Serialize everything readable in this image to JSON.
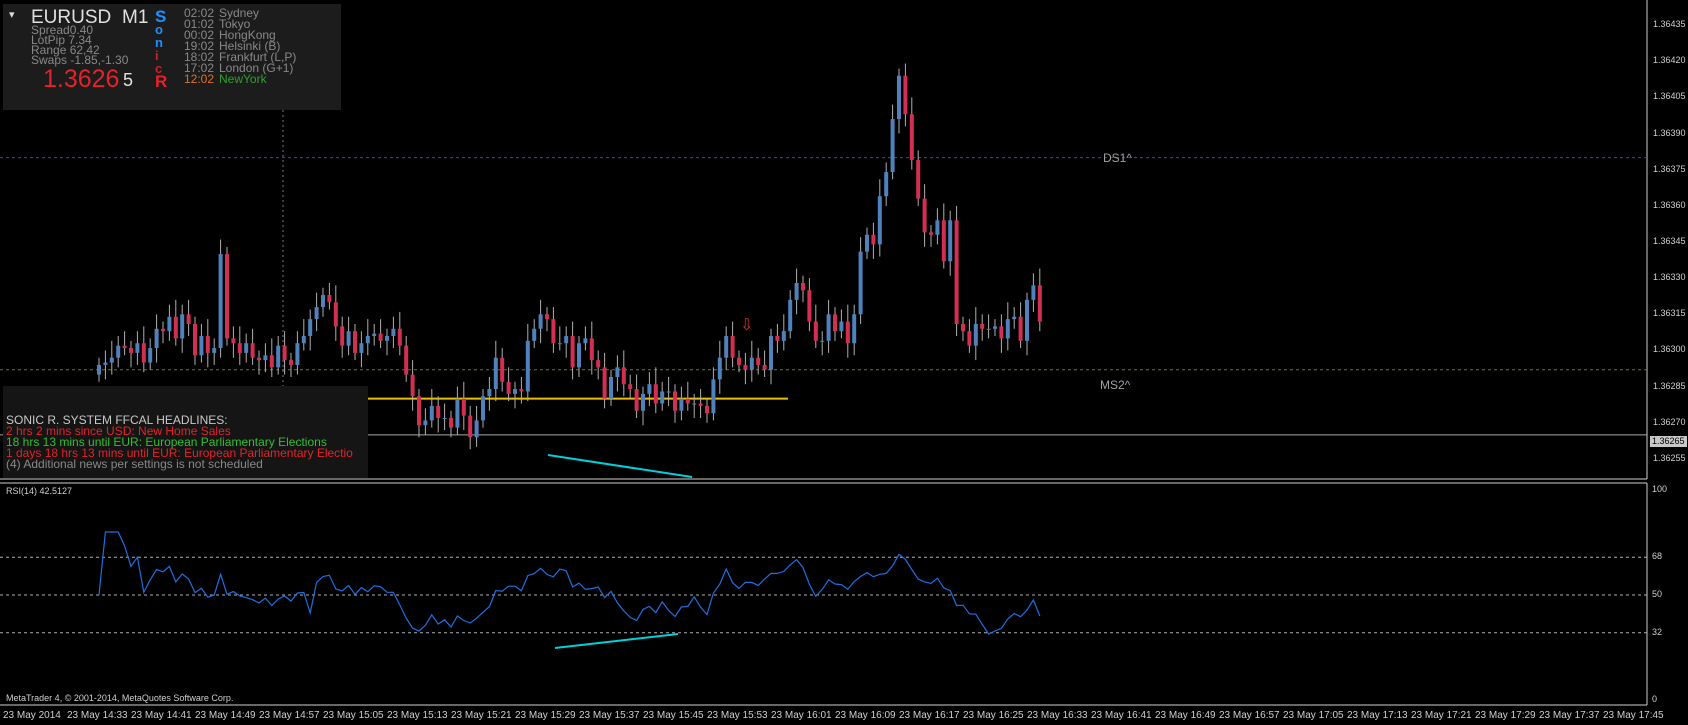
{
  "info": {
    "collapse_glyph": "▾",
    "symbol": "EURUSD",
    "timeframe": "M1",
    "spread": "Spread0.40",
    "lotpip": "LotPip 7.34",
    "range": "Range 62,42",
    "swaps": "Swaps -1.85,-1.30",
    "price": "1.3626",
    "pip_digit": "5",
    "sonic_letters": [
      "S",
      "o",
      "n",
      "i",
      "c",
      "R"
    ],
    "sonic_colors": [
      "#1e90ff",
      "#1e90ff",
      "#1e90ff",
      "#d02020",
      "#d02020",
      "#e8202a"
    ],
    "sessions": [
      {
        "time": "02:02",
        "name": "Sydney",
        "time_color": "#888",
        "name_color": "#888"
      },
      {
        "time": "01:02",
        "name": "Tokyo",
        "time_color": "#888",
        "name_color": "#888"
      },
      {
        "time": "00:02",
        "name": "HongKong",
        "time_color": "#888",
        "name_color": "#888"
      },
      {
        "time": "19:02",
        "name": "Helsinki  (B)",
        "time_color": "#888",
        "name_color": "#888"
      },
      {
        "time": "18:02",
        "name": "Frankfurt  (L,P)",
        "time_color": "#888",
        "name_color": "#888"
      },
      {
        "time": "17:02",
        "name": "London  (G+1)",
        "time_color": "#888",
        "name_color": "#888"
      },
      {
        "time": "12:02",
        "name": "NewYork",
        "time_color": "#e07020",
        "name_color": "#2ea02e"
      }
    ]
  },
  "news": {
    "header": "SONIC R. SYSTEM  FFCAL HEADLINES:",
    "items": [
      {
        "text": "2 hrs 2 mins since USD: New Home Sales",
        "color": "#e8202a"
      },
      {
        "text": "18 hrs 13 mins until EUR: European Parliamentary Elections",
        "color": "#2ec02e"
      },
      {
        "text": "1 days 18 hrs 13 mins until EUR: European Parliamentary Electio",
        "color": "#e8202a"
      },
      {
        "text": "(4)  Additional news per settings is not scheduled",
        "color": "#888888"
      }
    ]
  },
  "chart_labels": {
    "ds1": "DS1^",
    "ms2": "MS2^",
    "arrow": "⇩",
    "rsi_label": "RSI(14) 42.5127",
    "copyright": "MetaTrader 4, © 2001-2014, MetaQuotes Software Corp.",
    "current_price": "1.36265"
  },
  "price_axis_labels": [
    "1.36435",
    "1.36420",
    "1.36405",
    "1.36390",
    "1.36375",
    "1.36360",
    "1.36345",
    "1.36330",
    "1.36315",
    "1.36300",
    "1.36285",
    "1.36270",
    "1.36255"
  ],
  "rsi_axis_labels": [
    "100",
    "68",
    "50",
    "32",
    "0"
  ],
  "time_axis_labels": [
    "23 May 2014",
    "23 May 14:33",
    "23 May 14:41",
    "23 May 14:49",
    "23 May 14:57",
    "23 May 15:05",
    "23 May 15:13",
    "23 May 15:21",
    "23 May 15:29",
    "23 May 15:37",
    "23 May 15:45",
    "23 May 15:53",
    "23 May 16:01",
    "23 May 16:09",
    "23 May 16:17",
    "23 May 16:25",
    "23 May 16:33",
    "23 May 16:41",
    "23 May 16:49",
    "23 May 16:57",
    "23 May 17:05",
    "23 May 17:13",
    "23 May 17:21",
    "23 May 17:29",
    "23 May 17:37",
    "23 May 17:45"
  ],
  "chart_data": {
    "type": "candlestick",
    "symbol": "EURUSD",
    "timeframe": "M1",
    "price_range": [
      1.3625,
      1.3644
    ],
    "levels": {
      "DS1": 1.3638,
      "MS2": 1.36292,
      "current": 1.36265,
      "support": 1.3628
    },
    "colors": {
      "bull": "#4f81bd",
      "bear": "#d32f53",
      "rsi": "#1e6fe0",
      "trendline": "#00d0d8",
      "support": "#e8c000"
    },
    "rsi": {
      "period": 14,
      "value": 42.5127,
      "levels": [
        68,
        50,
        32
      ]
    },
    "closes": [
      1.36294,
      1.36295,
      1.36297,
      1.36302,
      1.36301,
      1.36299,
      1.36303,
      1.36295,
      1.36301,
      1.36309,
      1.36308,
      1.36314,
      1.36305,
      1.36315,
      1.36311,
      1.36298,
      1.36306,
      1.36299,
      1.36301,
      1.3634,
      1.36305,
      1.36303,
      1.36299,
      1.36303,
      1.36297,
      1.36296,
      1.36298,
      1.36293,
      1.36302,
      1.36296,
      1.36294,
      1.36303,
      1.36306,
      1.36313,
      1.36318,
      1.36323,
      1.3632,
      1.3631,
      1.36302,
      1.36308,
      1.36299,
      1.36303,
      1.36306,
      1.36307,
      1.36304,
      1.36306,
      1.36309,
      1.36302,
      1.3629,
      1.36281,
      1.36269,
      1.36271,
      1.36277,
      1.36272,
      1.36272,
      1.36268,
      1.3628,
      1.36273,
      1.36264,
      1.36271,
      1.36281,
      1.36284,
      1.36297,
      1.36287,
      1.36282,
      1.36284,
      1.36283,
      1.36304,
      1.36309,
      1.36315,
      1.36313,
      1.36303,
      1.36303,
      1.36306,
      1.36293,
      1.36303,
      1.36305,
      1.36296,
      1.36293,
      1.3628,
      1.36289,
      1.36293,
      1.36286,
      1.36284,
      1.36275,
      1.36282,
      1.36286,
      1.36278,
      1.36283,
      1.36283,
      1.36275,
      1.3628,
      1.36278,
      1.36278,
      1.36277,
      1.36274,
      1.36288,
      1.36297,
      1.36306,
      1.36297,
      1.36294,
      1.36292,
      1.36297,
      1.36294,
      1.36292,
      1.36306,
      1.36304,
      1.36308,
      1.36321,
      1.36328,
      1.36325,
      1.36312,
      1.36304,
      1.36304,
      1.36315,
      1.36308,
      1.36312,
      1.36303,
      1.36315,
      1.36341,
      1.36348,
      1.36344,
      1.36364,
      1.36374,
      1.36396,
      1.36414,
      1.36398,
      1.36379,
      1.36363,
      1.36349,
      1.36348,
      1.36354,
      1.36337,
      1.36354,
      1.36311,
      1.36308,
      1.36302,
      1.36311,
      1.36309,
      1.36309,
      1.3631,
      1.36305,
      1.36313,
      1.36314,
      1.36304,
      1.36321,
      1.36327,
      1.36312
    ]
  }
}
